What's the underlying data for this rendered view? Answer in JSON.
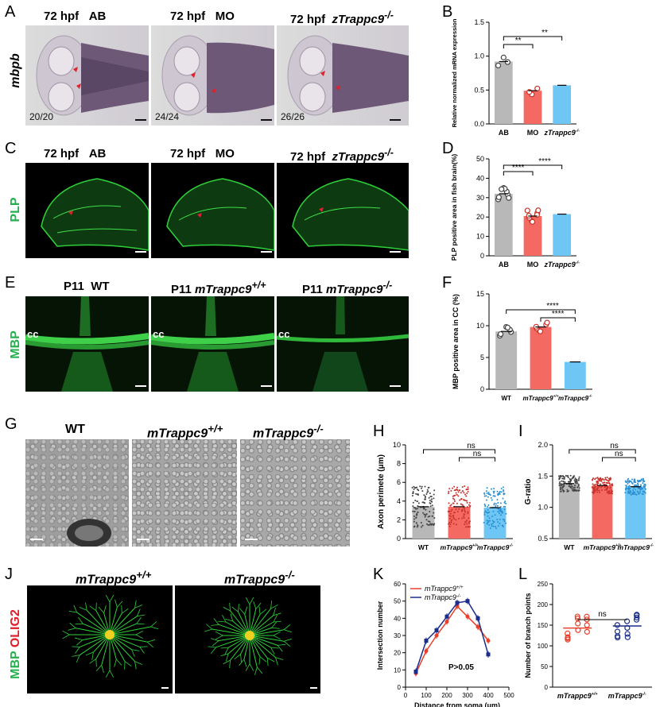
{
  "panels": {
    "A": "A",
    "B": "B",
    "C": "C",
    "D": "D",
    "E": "E",
    "F": "F",
    "G": "G",
    "H": "H",
    "I": "I",
    "J": "J",
    "K": "K",
    "L": "L"
  },
  "rowA": {
    "side": "mbpb",
    "caps": [
      {
        "pre": "72 hpf",
        "g": "AB"
      },
      {
        "pre": "72 hpf",
        "g": "MO"
      },
      {
        "pre": "72 hpf",
        "g": "zTrappc9",
        "sup": "-/-"
      }
    ],
    "counts": [
      "20/20",
      "24/24",
      "26/26"
    ]
  },
  "rowC": {
    "side": "PLP",
    "caps": [
      {
        "pre": "72 hpf",
        "g": "AB"
      },
      {
        "pre": "72 hpf",
        "g": "MO"
      },
      {
        "pre": "72 hpf",
        "g": "zTrappc9",
        "sup": "-/-"
      }
    ]
  },
  "rowE": {
    "side": "MBP",
    "cc": "cc",
    "caps": [
      {
        "pre": "P11",
        "g": "WT"
      },
      {
        "pre": "P11",
        "g": "mTrappc9",
        "sup": "+/+"
      },
      {
        "pre": "P11",
        "g": "mTrappc9",
        "sup": "-/-"
      }
    ]
  },
  "rowG": {
    "caps": [
      {
        "g": "WT"
      },
      {
        "g": "mTrappc9",
        "sup": "+/+"
      },
      {
        "g": "mTrappc9",
        "sup": "-/-"
      }
    ]
  },
  "rowJ": {
    "side1": "MBP",
    "side2": "OLIG2",
    "caps": [
      {
        "g": "mTrappc9",
        "sup": "+/+"
      },
      {
        "g": "mTrappc9",
        "sup": "-/-"
      }
    ]
  },
  "colors": {
    "gray": "#b8b8b8",
    "red": "#f46a63",
    "blue": "#6ec6f5",
    "green": "#22b14c",
    "k_red": "#e8402a",
    "k_blue": "#1a2d8c"
  },
  "chart_data": [
    {
      "panel": "B",
      "type": "bar",
      "ylabel": "Relative normalized mRNA expression",
      "categories": [
        "AB",
        "MO",
        "zTrappc9-/-"
      ],
      "values": [
        0.92,
        0.49,
        0.57
      ],
      "ylim": [
        0,
        1.5
      ],
      "yticks": [
        "0.0",
        "0.5",
        "1.0",
        "1.5"
      ],
      "sig": [
        "**",
        "**"
      ]
    },
    {
      "panel": "D",
      "type": "bar",
      "ylabel": "PLP positive area in fish brain(%)",
      "categories": [
        "AB",
        "MO",
        "zTrappc9-/-"
      ],
      "values": [
        32,
        20.5,
        21.5
      ],
      "ylim": [
        0,
        50
      ],
      "yticks": [
        "0",
        "10",
        "20",
        "30",
        "40",
        "50"
      ],
      "sig": [
        "****",
        "****"
      ]
    },
    {
      "panel": "F",
      "type": "bar",
      "ylabel": "MBP positive area in CC (%)",
      "categories": [
        "WT",
        "mTrappc9+/+",
        "mTrappc9-/-"
      ],
      "values": [
        9.1,
        9.8,
        4.3
      ],
      "ylim": [
        0,
        15
      ],
      "yticks": [
        "0",
        "5",
        "10",
        "15"
      ],
      "sig": [
        "****",
        "****"
      ]
    },
    {
      "panel": "H",
      "type": "bar",
      "ylabel": "Axon perimete (μm)",
      "categories": [
        "WT",
        "mTrappc9+/+",
        "mTrappc9-/-"
      ],
      "values": [
        3.4,
        3.4,
        3.3
      ],
      "ylim": [
        0,
        10
      ],
      "yticks": [
        "0",
        "2",
        "4",
        "6",
        "8",
        "10"
      ],
      "sig": [
        "ns",
        "ns"
      ]
    },
    {
      "panel": "I",
      "type": "bar",
      "ylabel": "G-ratio",
      "categories": [
        "WT",
        "mTrappc9+/+",
        "mTrappc9-/-"
      ],
      "values": [
        1.38,
        1.35,
        1.33
      ],
      "ylim": [
        0.5,
        2.0
      ],
      "yticks": [
        "0.5",
        "1.0",
        "1.5",
        "2.0"
      ],
      "sig": [
        "ns",
        "ns"
      ]
    },
    {
      "panel": "K",
      "type": "line",
      "xlabel": "Distance from soma (μm)",
      "ylabel": "Intersection number",
      "annotation": "P>0.05",
      "x": [
        50,
        100,
        150,
        200,
        250,
        300,
        350,
        400
      ],
      "xticks": [
        "0",
        "100",
        "200",
        "300",
        "400",
        "500"
      ],
      "yticks": [
        "0",
        "10",
        "20",
        "30",
        "40",
        "50",
        "60"
      ],
      "ylim": [
        0,
        60
      ],
      "xlim": [
        0,
        500
      ],
      "series": [
        {
          "name": "mTrappc9+/+",
          "values": [
            8,
            21,
            30,
            38,
            47,
            41,
            35,
            27
          ]
        },
        {
          "name": "mTrappc9-/-",
          "values": [
            9,
            27,
            33,
            41,
            49,
            50,
            40,
            19
          ]
        }
      ]
    },
    {
      "panel": "L",
      "type": "scatter",
      "ylabel": "Number of branch points",
      "categories": [
        "mTrappc9+/+",
        "mTrappc9-/-"
      ],
      "values": [
        143,
        148
      ],
      "ylim": [
        0,
        250
      ],
      "yticks": [
        "0",
        "50",
        "100",
        "150",
        "200",
        "250"
      ],
      "sig": [
        "ns"
      ]
    }
  ]
}
